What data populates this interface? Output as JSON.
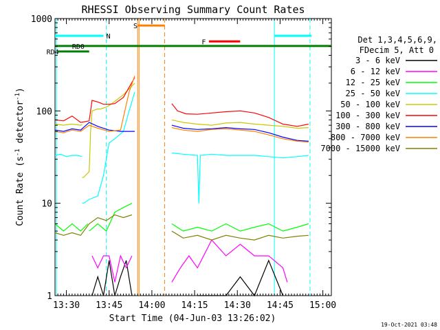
{
  "chart_data": {
    "type": "line",
    "title": "RHESSI Observing Summary Count Rates",
    "xlabel": "Start Time (04-Jun-03 13:26:02)",
    "ylabel_main": "Count Rate (s",
    "ylabel_sup": "-1",
    "ylabel_rest": " detector",
    "ylabel_sup2": "-1",
    "ylabel_close": ")",
    "footer": "19-Oct-2021 03:48",
    "x_range_minutes": [
      0,
      97
    ],
    "ylim": [
      1,
      1000
    ],
    "y_scale": "log",
    "x_ticks": [
      {
        "label": "13:30",
        "minute": 4
      },
      {
        "label": "13:45",
        "minute": 19
      },
      {
        "label": "14:00",
        "minute": 34
      },
      {
        "label": "14:15",
        "minute": 49
      },
      {
        "label": "14:30",
        "minute": 64
      },
      {
        "label": "14:45",
        "minute": 79
      },
      {
        "label": "15:00",
        "minute": 94
      }
    ],
    "y_ticks": [
      {
        "label": "1",
        "value": 1
      },
      {
        "label": "10",
        "value": 10
      },
      {
        "label": "100",
        "value": 100
      },
      {
        "label": "1000",
        "value": 1000
      }
    ],
    "legend_header": [
      "Det 1,3,4,5,6,9,",
      "FDecim 5, Att 0"
    ],
    "series": [
      {
        "name": "3 - 6 keV",
        "color": "#000000",
        "segments": [
          {
            "x": [
              0,
              12,
              12.1
            ],
            "y": [
              null,
              null,
              null
            ]
          },
          {
            "x": [
              13,
              15,
              17,
              19,
              21,
              23,
              25,
              27
            ],
            "y": [
              1,
              1.6,
              1,
              2.4,
              1,
              1.6,
              2.4,
              1
            ]
          },
          {
            "x": [
              50,
              55,
              60,
              65,
              70,
              75,
              80
            ],
            "y": [
              1,
              1,
              1,
              1.6,
              1,
              2.4,
              1
            ]
          }
        ]
      },
      {
        "name": "6 - 12 keV",
        "color": "#ff00ff",
        "segments": [
          {
            "x": [
              13,
              15,
              17,
              19,
              21,
              23,
              25,
              27
            ],
            "y": [
              2.7,
              2,
              2.7,
              2.7,
              1.4,
              2.7,
              2,
              2.7
            ]
          },
          {
            "x": [
              41,
              44,
              47,
              50,
              55,
              60,
              65,
              70,
              75,
              80,
              81.5
            ],
            "y": [
              1.4,
              2,
              2.7,
              2,
              4,
              2.7,
              3.6,
              2.7,
              2.7,
              2,
              1.4
            ]
          }
        ]
      },
      {
        "name": "12 - 25 keV",
        "color": "#00ff00",
        "segments": [
          {
            "x": [
              0,
              3,
              6,
              9,
              11.5
            ],
            "y": [
              6,
              5,
              6,
              5,
              6
            ]
          },
          {
            "x": [
              12,
              15,
              18,
              21,
              24,
              27
            ],
            "y": [
              5,
              6,
              5,
              8,
              9,
              10
            ]
          },
          {
            "x": [
              41,
              45,
              50,
              55,
              60,
              65,
              70,
              75,
              80,
              85,
              89
            ],
            "y": [
              6,
              5,
              5.5,
              5,
              6,
              5,
              5.5,
              6,
              5,
              5.5,
              6
            ]
          }
        ]
      },
      {
        "name": "25 - 50 keV",
        "color": "#00ffff",
        "segments": [
          {
            "x": [
              0,
              2,
              4,
              6,
              8,
              9.5
            ],
            "y": [
              33,
              34,
              32,
              33,
              33,
              32
            ]
          },
          {
            "x": [
              9.5,
              10,
              12,
              15,
              17,
              19,
              21,
              24,
              26,
              28
            ],
            "y": [
              10,
              10,
              11,
              12,
              20,
              45,
              50,
              60,
              100,
              160
            ]
          },
          {
            "x": [
              41,
              45,
              50,
              50.5,
              51,
              55,
              60,
              65,
              70,
              75,
              80,
              85,
              89
            ],
            "y": [
              35,
              34,
              33,
              10,
              33,
              34,
              33,
              33,
              33,
              32,
              31,
              32,
              33
            ]
          }
        ]
      },
      {
        "name": "50 - 100 keV",
        "color": "#c8c800",
        "segments": [
          {
            "x": [
              0,
              3,
              6,
              9,
              9.5
            ],
            "y": [
              72,
              70,
              72,
              70,
              71
            ]
          },
          {
            "x": [
              9.5,
              10,
              12,
              12.5,
              13,
              15,
              16,
              18,
              20,
              24,
              28
            ],
            "y": [
              19,
              19,
              22,
              60,
              100,
              105,
              105,
              110,
              120,
              150,
              200
            ]
          },
          {
            "x": [
              41,
              45,
              50,
              55,
              60,
              65,
              70,
              75,
              80,
              85,
              89
            ],
            "y": [
              80,
              75,
              72,
              70,
              74,
              75,
              72,
              70,
              68,
              65,
              66
            ]
          }
        ]
      },
      {
        "name": "100 - 300 keV",
        "color": "#ff0000",
        "segments": [
          {
            "x": [
              0,
              3,
              6,
              9,
              12,
              13,
              15,
              17,
              19,
              21,
              24,
              26,
              28
            ],
            "y": [
              80,
              78,
              88,
              75,
              78,
              130,
              125,
              118,
              118,
              120,
              140,
              180,
              230
            ]
          },
          {
            "x": [
              41,
              43,
              46,
              50,
              55,
              60,
              65,
              70,
              75,
              80,
              85,
              89
            ],
            "y": [
              120,
              100,
              93,
              92,
              95,
              98,
              100,
              95,
              85,
              72,
              68,
              72
            ]
          }
        ]
      },
      {
        "name": "300 - 800 keV",
        "color": "#0000ff",
        "segments": [
          {
            "x": [
              0,
              3,
              6,
              9,
              12,
              15,
              19,
              23,
              28
            ],
            "y": [
              62,
              60,
              64,
              62,
              75,
              68,
              62,
              60,
              60
            ]
          },
          {
            "x": [
              41,
              45,
              50,
              55,
              60,
              65,
              70,
              75,
              80,
              85,
              89
            ],
            "y": [
              70,
              65,
              63,
              64,
              66,
              64,
              63,
              58,
              52,
              48,
              47
            ]
          }
        ]
      },
      {
        "name": "800 - 7000 keV",
        "color": "#ff8000",
        "segments": [
          {
            "x": [
              0,
              3,
              6,
              9,
              12,
              15,
              19,
              23,
              26,
              28
            ],
            "y": [
              60,
              58,
              62,
              60,
              70,
              65,
              60,
              62,
              160,
              240
            ]
          },
          {
            "x": [
              41,
              45,
              50,
              55,
              60,
              65,
              70,
              75,
              80,
              85,
              89
            ],
            "y": [
              66,
              62,
              60,
              63,
              64,
              62,
              60,
              55,
              50,
              47,
              46
            ]
          }
        ]
      },
      {
        "name": "7000 - 15000 keV",
        "color": "#808000",
        "segments": [
          {
            "x": [
              0,
              3,
              6,
              9,
              12,
              15,
              18,
              21,
              24,
              27
            ],
            "y": [
              4.8,
              4.5,
              4.8,
              4.5,
              6,
              7,
              6.5,
              7.5,
              7,
              7.5
            ]
          },
          {
            "x": [
              41,
              45,
              50,
              55,
              60,
              65,
              70,
              75,
              80,
              85,
              89
            ],
            "y": [
              5,
              4.2,
              4.5,
              4,
              4.5,
              4.2,
              4,
              4.5,
              4.2,
              4.4,
              4.5
            ]
          }
        ]
      }
    ],
    "flags": [
      {
        "label": "N",
        "color": "#00ffff",
        "x": [
          0,
          17
        ],
        "y": 650,
        "label_x": 18
      },
      {
        "label": "N",
        "color": "#00ffff",
        "x": [
          77,
          90
        ],
        "y": 650,
        "label_x": null
      },
      {
        "label": "S",
        "color": "#ff8000",
        "x": [
          29,
          38.5
        ],
        "y": 840,
        "label_x": 27.5
      },
      {
        "label": "F",
        "color": "#ff0000",
        "x": [
          54,
          65
        ],
        "y": 565,
        "label_x": 51.5
      },
      {
        "label": "RD0",
        "color": "#008000",
        "x": [
          0,
          97
        ],
        "y": 505,
        "label_x": 6
      },
      {
        "label": "RD4",
        "color": "#008000",
        "x": [
          1,
          12
        ],
        "y": 440,
        "label_x": -3
      }
    ],
    "vlines": [
      {
        "minute": 0.5,
        "color": "#00ffff",
        "style": "solid"
      },
      {
        "minute": 18,
        "color": "#00ffff",
        "style": "dashed"
      },
      {
        "minute": 29,
        "color": "#ff8000",
        "style": "solid"
      },
      {
        "minute": 29.5,
        "color": "#ff8000",
        "style": "solid"
      },
      {
        "minute": 38.5,
        "color": "#ff8000",
        "style": "dashed"
      },
      {
        "minute": 77,
        "color": "#00ffff",
        "style": "solid"
      },
      {
        "minute": 89.5,
        "color": "#00ffff",
        "style": "dashed"
      }
    ]
  }
}
